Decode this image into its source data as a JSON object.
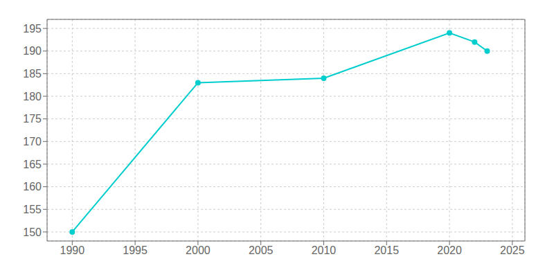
{
  "chart_data": {
    "type": "line",
    "x": [
      1990,
      2000,
      2010,
      2020,
      2022,
      2023
    ],
    "values": [
      150,
      183,
      184,
      194,
      192,
      190
    ],
    "color": "#00CDCD",
    "marker": "circle",
    "xlim": [
      1988,
      2026
    ],
    "ylim": [
      148,
      197
    ],
    "xticks": [
      1990,
      1995,
      2000,
      2005,
      2010,
      2015,
      2020,
      2025
    ],
    "yticks": [
      150,
      155,
      160,
      165,
      170,
      175,
      180,
      185,
      190,
      195
    ],
    "grid": true
  }
}
